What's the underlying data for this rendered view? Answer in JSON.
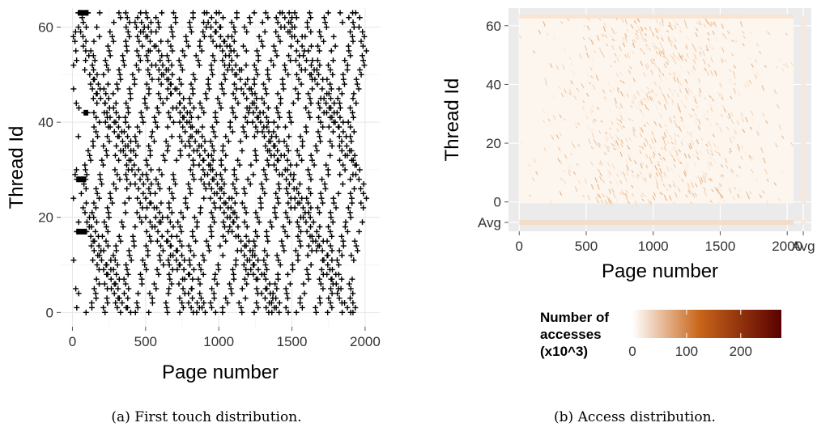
{
  "chart_data": [
    {
      "type": "scatter",
      "marker": "+",
      "xlabel": "Page number",
      "ylabel": "Thread Id",
      "xlim": [
        -80,
        2100
      ],
      "ylim": [
        -3,
        64
      ],
      "xticks": [
        0,
        500,
        1000,
        1500,
        2000
      ],
      "yticks": [
        0,
        20,
        40,
        60
      ],
      "grid": true,
      "background": "#ffffff",
      "caption": "(a)  First touch distribution.",
      "dense_runs": [
        {
          "thread": 63,
          "x_from": 40,
          "x_to": 110
        },
        {
          "thread": 42,
          "x_from": 80,
          "x_to": 105
        },
        {
          "thread": 28,
          "x_from": 30,
          "x_to": 90
        },
        {
          "thread": 17,
          "x_from": 30,
          "x_to": 100
        }
      ],
      "note_series": "Each of 64 threads (0-63) first-touches pages spread across 0-2048; band of 'zigzag' diagonal streaks of + markers."
    },
    {
      "type": "heatmap",
      "xlabel": "Page number",
      "ylabel": "Thread Id",
      "xlim": [
        -80,
        2180
      ],
      "ylim": [
        -10,
        66
      ],
      "xticks": [
        "0",
        "500",
        "1000",
        "1500",
        "2000",
        "Avg"
      ],
      "xtick_values": [
        0,
        500,
        1000,
        1500,
        2000,
        2120
      ],
      "yticks": [
        "Avg",
        "0",
        "20",
        "40",
        "60"
      ],
      "ytick_values": [
        -7,
        0,
        20,
        40,
        60
      ],
      "grid": true,
      "panel_background": "#ebebeb",
      "colorscale": [
        "#ffffff",
        "#c8661a",
        "#5a0000"
      ],
      "legend": {
        "title_lines": [
          "Number of",
          "accesses",
          "(x10^3)"
        ],
        "ticks": [
          "0",
          "100",
          "200"
        ],
        "tick_values": [
          0,
          100,
          200
        ],
        "range": [
          0,
          275
        ]
      },
      "caption": "(b)  Access distribution."
    }
  ]
}
